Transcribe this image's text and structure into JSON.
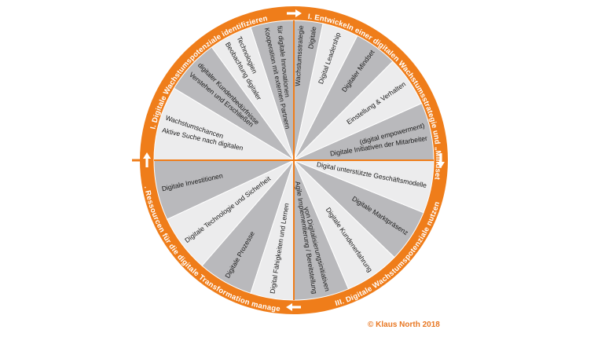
{
  "colors": {
    "ring": "#ef7d1a",
    "segment_dark": "#b9b9bc",
    "segment_light": "#ececed",
    "divider": "#ffffff",
    "arrow": "#ffffff",
    "copyright": "#e87722"
  },
  "quadrants": [
    {
      "id": "I",
      "label": "I. Digitale Wachstumspotenziale identifizieren"
    },
    {
      "id": "II",
      "label": "II. Entwickeln einer digitalen Wachstumsstrategie und „Mindset“"
    },
    {
      "id": "III",
      "label": "III. Digitale Wachstumspotenziale nutzen"
    },
    {
      "id": "IV",
      "label": "IV. Ressourcen für die digitale Transformation managen"
    }
  ],
  "segments": [
    {
      "lines": [
        "Kooperation mit externen Partnern",
        "für digitale Innovationen"
      ],
      "shade": "dark"
    },
    {
      "lines": [
        "Beobachtung digitaler",
        "Technologien"
      ],
      "shade": "light"
    },
    {
      "lines": [
        "Verstehen und Erschließen",
        "digitaler Kundenbedürfnisse"
      ],
      "shade": "dark"
    },
    {
      "lines": [
        "Aktive Suche nach digitalen",
        "Wachstumschancen"
      ],
      "shade": "light"
    },
    {
      "lines": [
        "Digitale Investitionen"
      ],
      "shade": "dark"
    },
    {
      "lines": [
        "Digitale Technologie und Sicherheit"
      ],
      "shade": "light"
    },
    {
      "lines": [
        "Digitale Prozesse"
      ],
      "shade": "dark"
    },
    {
      "lines": [
        "Digital Fähigkeiten und Lernen"
      ],
      "shade": "light"
    },
    {
      "lines": [
        "Agile Implementierung / Bereitstellung",
        "von Digitalisierungsinitiativen"
      ],
      "shade": "dark"
    },
    {
      "lines": [
        "Digitale Kundenerfahrung"
      ],
      "shade": "light"
    },
    {
      "lines": [
        "Digitale Marktpräsenz"
      ],
      "shade": "dark"
    },
    {
      "lines": [
        "Digital unterstützte Geschäftsmodelle"
      ],
      "shade": "light"
    },
    {
      "lines": [
        "Digitale Initiativen der Mitarbeiter",
        "(digital empowerment)"
      ],
      "shade": "dark"
    },
    {
      "lines": [
        "Einstellung & Verhalten"
      ],
      "shade": "light"
    },
    {
      "lines": [
        "Digitaler Mindset"
      ],
      "shade": "dark"
    },
    {
      "lines": [
        "Digital Leadership"
      ],
      "shade": "light"
    },
    {
      "lines": [
        "Digitale",
        "Wachstumsstrategie"
      ],
      "shade": "dark"
    }
  ],
  "copyright": "© Klaus North 2018"
}
